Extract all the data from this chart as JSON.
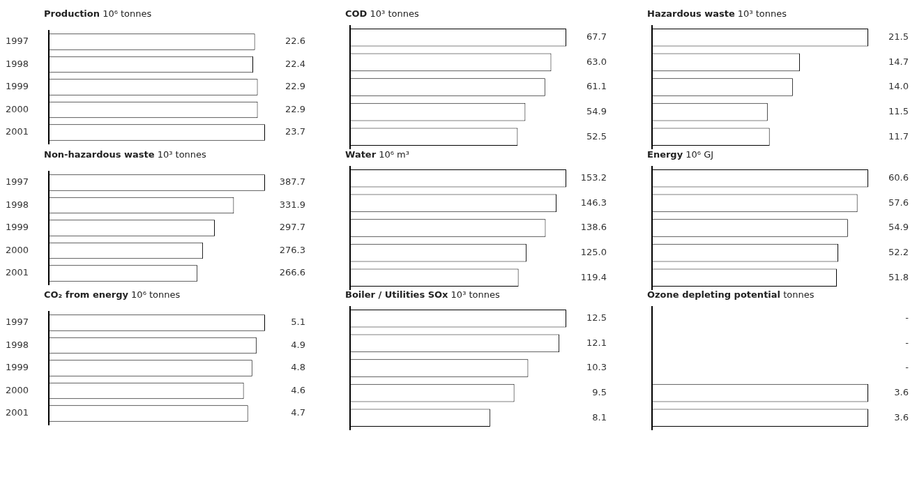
{
  "chart_data": [
    {
      "type": "bar",
      "orientation": "horizontal",
      "title": "Production",
      "subtitle": "10⁶ tonnes",
      "categories": [
        "1997",
        "1998",
        "1999",
        "2000",
        "2001"
      ],
      "values": [
        22.6,
        22.4,
        22.9,
        22.9,
        23.7
      ],
      "value_labels": [
        "22.6",
        "22.4",
        "22.9",
        "22.9",
        "23.7"
      ],
      "color": "#ffffff",
      "tick_labels": "y"
    },
    {
      "type": "bar",
      "orientation": "horizontal",
      "title": "COD",
      "subtitle": "10³ tonnes",
      "categories": [
        "1997",
        "1998",
        "1999",
        "2000",
        "2001"
      ],
      "values": [
        67.7,
        63.0,
        61.1,
        54.9,
        52.5
      ],
      "value_labels": [
        "67.7",
        "63.0",
        "61.1",
        "54.9",
        "52.5"
      ],
      "color": "#ffffff",
      "tick_labels": false
    },
    {
      "type": "bar",
      "orientation": "horizontal",
      "title": "Hazardous waste",
      "subtitle": "10³ tonnes",
      "categories": [
        "1997",
        "1998",
        "1999",
        "2000",
        "2001"
      ],
      "values": [
        21.5,
        14.7,
        14.0,
        11.5,
        11.7
      ],
      "value_labels": [
        "21.5",
        "14.7",
        "14.0",
        "11.5",
        "11.7"
      ],
      "color": "#ffffff",
      "tick_labels": false
    },
    {
      "type": "bar",
      "orientation": "horizontal",
      "title": "Non-hazardous waste",
      "subtitle": "10³ tonnes",
      "categories": [
        "1997",
        "1998",
        "1999",
        "2000",
        "2001"
      ],
      "values": [
        387.7,
        331.9,
        297.7,
        276.3,
        266.6
      ],
      "value_labels": [
        "387.7",
        "331.9",
        "297.7",
        "276.3",
        "266.6"
      ],
      "color": "#ffffff",
      "tick_labels": "y"
    },
    {
      "type": "bar",
      "orientation": "horizontal",
      "title": "Water",
      "subtitle": "10⁶ m³",
      "categories": [
        "1997",
        "1998",
        "1999",
        "2000",
        "2001"
      ],
      "values": [
        153.2,
        146.3,
        138.6,
        125.0,
        119.4
      ],
      "value_labels": [
        "153.2",
        "146.3",
        "138.6",
        "125.0",
        "119.4"
      ],
      "color": "#ffffff",
      "tick_labels": false
    },
    {
      "type": "bar",
      "orientation": "horizontal",
      "title": "Energy",
      "subtitle": "10⁶ GJ",
      "categories": [
        "1997",
        "1998",
        "1999",
        "2000",
        "2001"
      ],
      "values": [
        60.6,
        57.6,
        54.9,
        52.2,
        51.8
      ],
      "value_labels": [
        "60.6",
        "57.6",
        "54.9",
        "52.2",
        "51.8"
      ],
      "color": "#ffffff",
      "tick_labels": false
    },
    {
      "type": "bar",
      "orientation": "horizontal",
      "title": "CO₂ from energy",
      "subtitle": "10⁶ tonnes",
      "categories": [
        "1997",
        "1998",
        "1999",
        "2000",
        "2001"
      ],
      "values": [
        5.1,
        4.9,
        4.8,
        4.6,
        4.7
      ],
      "value_labels": [
        "5.1",
        "4.9",
        "4.8",
        "4.6",
        "4.7"
      ],
      "color": "#ffffff",
      "tick_labels": "y"
    },
    {
      "type": "bar",
      "orientation": "horizontal",
      "title": "Boiler / Utilities SOx",
      "subtitle": "10³ tonnes",
      "categories": [
        "1997",
        "1998",
        "1999",
        "2000",
        "2001"
      ],
      "values": [
        12.5,
        12.1,
        10.3,
        9.5,
        8.1
      ],
      "value_labels": [
        "12.5",
        "12.1",
        "10.3",
        "9.5",
        "8.1"
      ],
      "color": "#ffffff",
      "tick_labels": false
    },
    {
      "type": "bar",
      "orientation": "horizontal",
      "title": "Ozone depleting potential",
      "subtitle": "tonnes",
      "categories": [
        "1997",
        "1998",
        "1999",
        "2000",
        "2001"
      ],
      "values": [
        null,
        null,
        null,
        3.6,
        3.6
      ],
      "value_labels": [
        "-",
        "-",
        "-",
        "3.6",
        "3.6"
      ],
      "color": "#ffffff",
      "tick_labels": false
    }
  ]
}
